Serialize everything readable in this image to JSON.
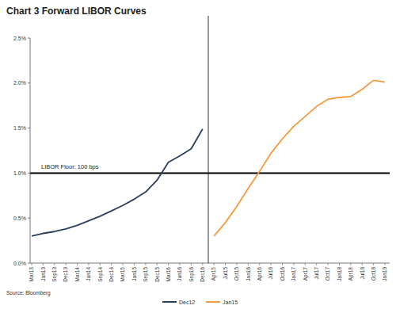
{
  "chart_data": {
    "type": "line",
    "title": "Chart 3  Forward LIBOR Curves",
    "source": "Source: Bloomberg",
    "categories": [
      "Mar13",
      "Jun13",
      "Sep13",
      "Dec13",
      "Mar14",
      "Jun14",
      "Sep14",
      "Dec14",
      "Mar15",
      "Jun15",
      "Sep15",
      "Dec15",
      "Mar16",
      "Jun16",
      "Sep16",
      "Dec16",
      "Apr15",
      "Jul15",
      "Oct15",
      "Jan16",
      "Apr16",
      "Jul16",
      "Oct16",
      "Jan17",
      "Apr17",
      "Jul17",
      "Oct17",
      "Jan18",
      "Apr18",
      "Jul18",
      "Oct18",
      "Jan19"
    ],
    "series": [
      {
        "name": "Dec12",
        "color": "#2b3f5c",
        "values": [
          0.3,
          0.33,
          0.35,
          0.38,
          0.42,
          0.47,
          0.52,
          0.58,
          0.64,
          0.71,
          0.79,
          0.92,
          1.12,
          1.19,
          1.27,
          1.49,
          null,
          null,
          null,
          null,
          null,
          null,
          null,
          null,
          null,
          null,
          null,
          null,
          null,
          null,
          null,
          null
        ]
      },
      {
        "name": "Jan15",
        "color": "#f39a3c",
        "values": [
          null,
          null,
          null,
          null,
          null,
          null,
          null,
          null,
          null,
          null,
          null,
          null,
          null,
          null,
          null,
          null,
          0.3,
          0.45,
          0.63,
          0.83,
          1.02,
          1.22,
          1.38,
          1.52,
          1.63,
          1.74,
          1.82,
          1.84,
          1.85,
          1.93,
          2.03,
          2.01
        ]
      }
    ],
    "annotations": [
      {
        "text": "LIBOR Floor:  100 bps",
        "y": 1.0
      }
    ],
    "ylim": [
      0,
      2.5
    ],
    "yticks": [
      {
        "value": 0,
        "label": "0.0%"
      },
      {
        "value": 0.5,
        "label": "0.5%"
      },
      {
        "value": 1.0,
        "label": "1.0%"
      },
      {
        "value": 1.5,
        "label": "1.5%"
      },
      {
        "value": 2.0,
        "label": "2.0%"
      },
      {
        "value": 2.5,
        "label": "2.5%"
      }
    ],
    "grid": false,
    "legend": "bottom"
  }
}
